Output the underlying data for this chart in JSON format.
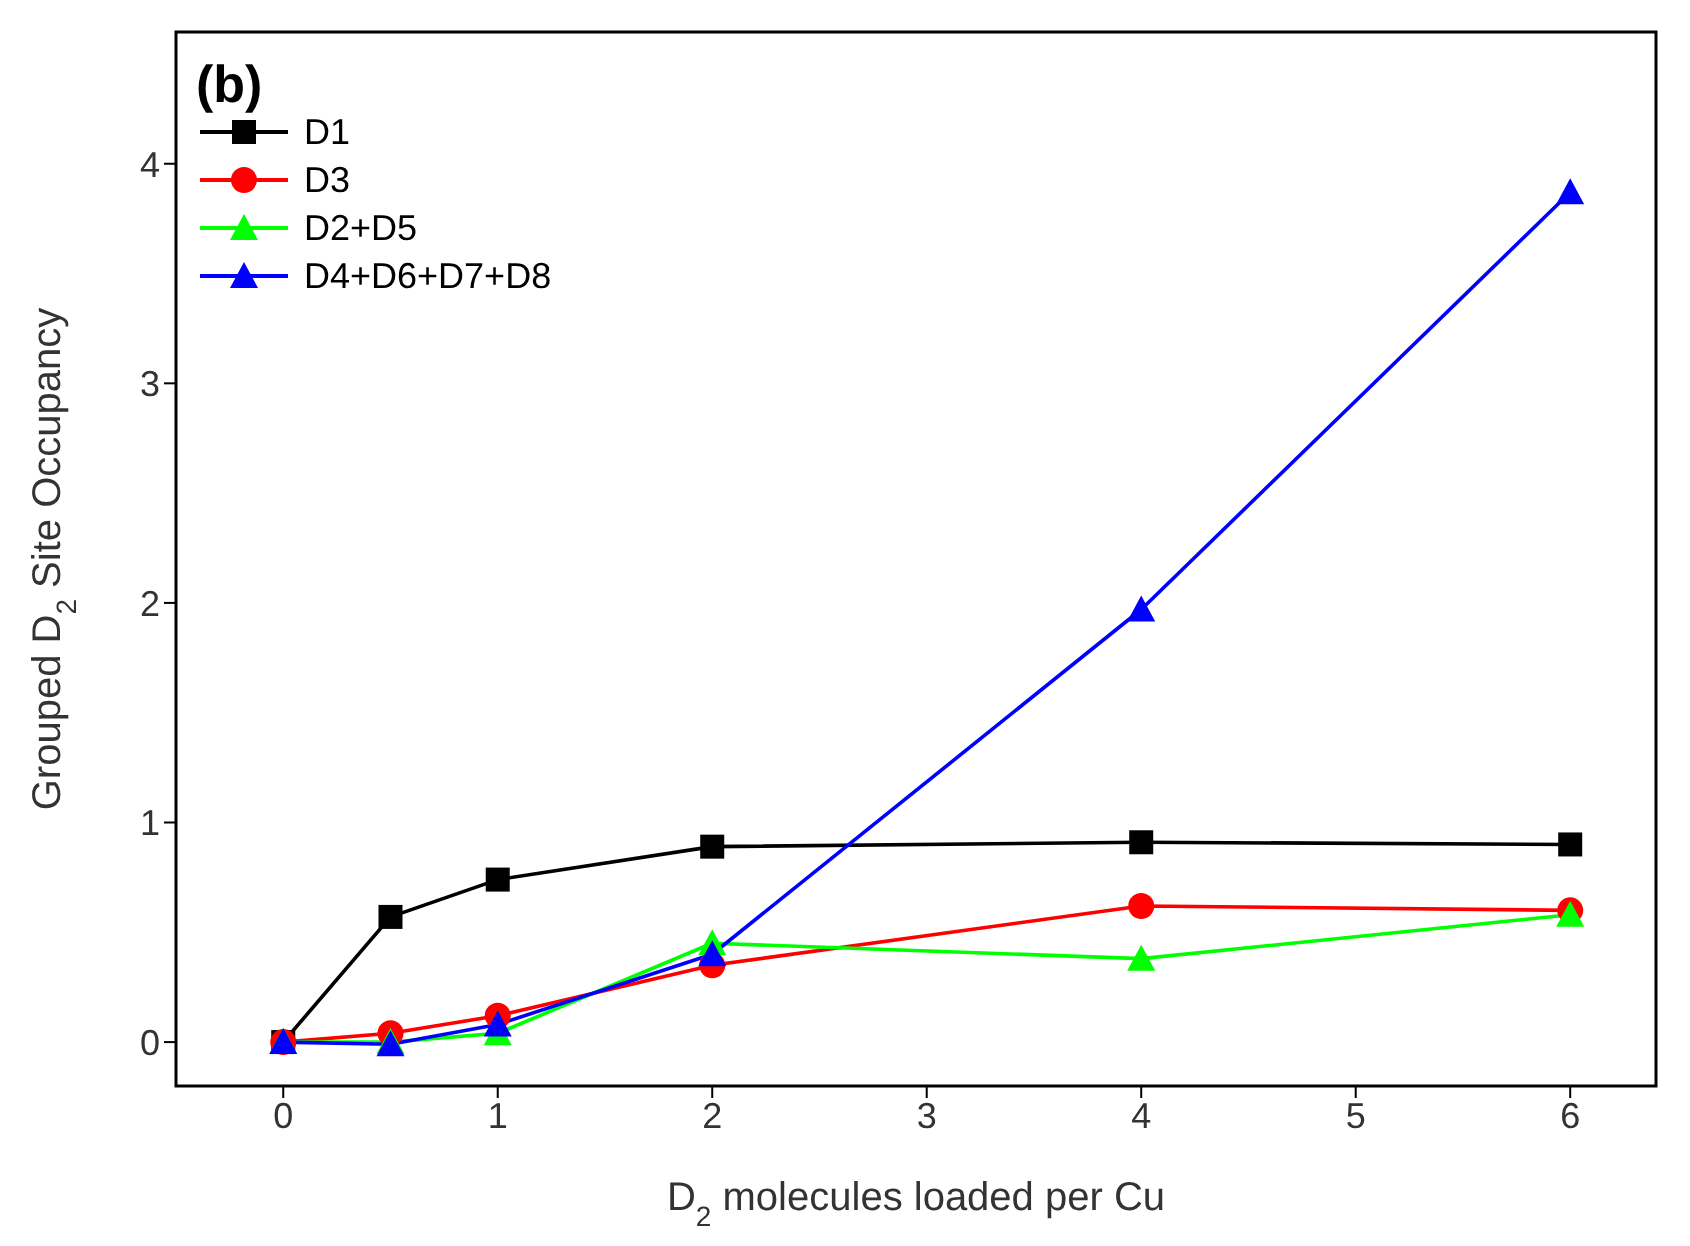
{
  "chart_data": {
    "type": "line",
    "annotations": [
      "(b)"
    ],
    "xlabel": "D$_{2}$ molecules loaded per Cu",
    "ylabel": "Grouped D$_{2}$ Site Occupancy",
    "x": [
      0,
      0.5,
      1,
      2,
      4,
      6
    ],
    "series": [
      {
        "name": "D1",
        "color": "#000000",
        "marker": "square",
        "values": [
          0,
          0.57,
          0.74,
          0.89,
          0.91,
          0.9
        ]
      },
      {
        "name": "D3",
        "color": "#ff0000",
        "marker": "circle",
        "values": [
          0,
          0.04,
          0.12,
          0.35,
          0.62,
          0.6
        ]
      },
      {
        "name": "D2+D5",
        "color": "#00ff00",
        "marker": "triangle",
        "values": [
          0,
          0,
          0.04,
          0.45,
          0.38,
          0.58
        ]
      },
      {
        "name": "D4+D6+D7+D8",
        "color": "#0000ff",
        "marker": "triangle",
        "values": [
          0,
          -0.01,
          0.08,
          0.4,
          1.97,
          3.87
        ]
      }
    ],
    "xlim": [
      -0.5,
      6.4
    ],
    "xticks": [
      0,
      1,
      2,
      3,
      4,
      5,
      6
    ],
    "ylim": [
      -0.2,
      4.6
    ],
    "yticks": [
      0,
      1,
      2,
      3,
      4
    ],
    "legend": "top left",
    "line_style": "solid"
  }
}
